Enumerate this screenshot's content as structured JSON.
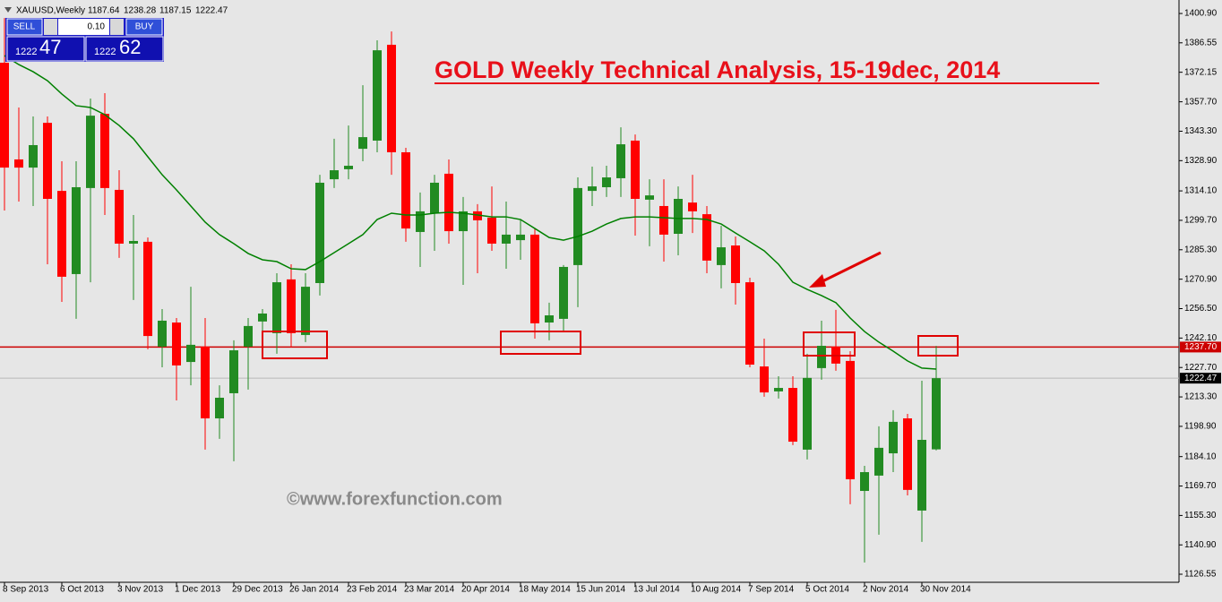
{
  "chart_data": {
    "type": "candlestick",
    "title": "GOLD Weekly Technical Analysis, 15-19dec, 2014",
    "watermark": "©www.forexfunction.com",
    "symbol": "XAUUSD,Weekly",
    "up_color": "#228b22",
    "down_color": "#ff0000",
    "categories": [
      "8 Sep 2013",
      null,
      null,
      null,
      "6 Oct 2013",
      null,
      null,
      null,
      "3 Nov 2013",
      null,
      null,
      null,
      "1 Dec 2013",
      null,
      null,
      null,
      "29 Dec 2013",
      null,
      null,
      null,
      "26 Jan 2014",
      null,
      null,
      null,
      "23 Feb 2014",
      null,
      null,
      null,
      "23 Mar 2014",
      null,
      null,
      null,
      "20 Apr 2014",
      null,
      null,
      null,
      "18 May 2014",
      null,
      null,
      null,
      "15 Jun 2014",
      null,
      null,
      null,
      "13 Jul 2014",
      null,
      null,
      null,
      "10 Aug 2014",
      null,
      null,
      null,
      "7 Sep 2014",
      null,
      null,
      null,
      "5 Oct 2014",
      null,
      null,
      null,
      "2 Nov 2014",
      null,
      null,
      null,
      "30 Nov 2014",
      null
    ],
    "open": [
      1376.8,
      1329.5,
      1325.5,
      1347.4,
      1314.1,
      1273.4,
      1315.5,
      1351.8,
      1314.6,
      1288.3,
      1289.2,
      1237.9,
      1249.7,
      1230.4,
      1237.9,
      1202.8,
      1215.1,
      1237.9,
      1250.2,
      1244.5,
      1270.8,
      1243.6,
      1269.0,
      1319.8,
      1324.7,
      1334.7,
      1338.7,
      1385.6,
      1333.0,
      1294.0,
      1303.2,
      1322.5,
      1294.4,
      1304.1,
      1301.0,
      1288.3,
      1290.0,
      1292.7,
      1249.7,
      1251.5,
      1277.8,
      1314.1,
      1315.9,
      1320.3,
      1338.7,
      1309.8,
      1306.7,
      1293.1,
      1308.4,
      1302.7,
      1277.8,
      1287.4,
      1269.4,
      1228.2,
      1216.0,
      1217.7,
      1187.5,
      1227.4,
      1237.9,
      1230.9,
      1167.3,
      1174.8,
      1185.7,
      1202.8,
      1157.7,
      1187.64
    ],
    "high": [
      1398.7,
      1354.9,
      1350.5,
      1350.5,
      1328.6,
      1328.6,
      1359.3,
      1361.9,
      1324.2,
      1302.3,
      1291.3,
      1256.3,
      1251.9,
      1267.2,
      1251.9,
      1219.0,
      1241.0,
      1251.9,
      1256.3,
      1273.8,
      1278.2,
      1273.8,
      1322.0,
      1339.6,
      1346.1,
      1365.8,
      1387.8,
      1392.1,
      1335.2,
      1313.3,
      1322.0,
      1329.5,
      1311.1,
      1307.6,
      1316.3,
      1308.9,
      1300.1,
      1295.7,
      1259.4,
      1277.8,
      1320.7,
      1326.0,
      1326.4,
      1345.2,
      1341.7,
      1319.8,
      1319.8,
      1316.3,
      1322.0,
      1306.7,
      1297.0,
      1291.8,
      1271.6,
      1241.8,
      1223.4,
      1223.4,
      1234.4,
      1250.6,
      1255.9,
      1235.7,
      1179.6,
      1198.9,
      1206.8,
      1205.0,
      1221.2,
      1238.28
    ],
    "low": [
      1304.5,
      1308.9,
      1306.7,
      1278.2,
      1259.8,
      1251.5,
      1269.4,
      1302.3,
      1281.3,
      1260.7,
      1236.6,
      1227.8,
      1211.6,
      1219.0,
      1187.5,
      1192.8,
      1181.8,
      1216.9,
      1245.3,
      1234.4,
      1237.5,
      1240.1,
      1262.9,
      1315.5,
      1319.8,
      1328.6,
      1333.0,
      1322.0,
      1289.2,
      1276.9,
      1284.8,
      1288.3,
      1268.1,
      1273.8,
      1284.8,
      1276.0,
      1280.4,
      1241.8,
      1241.0,
      1245.3,
      1257.2,
      1306.7,
      1311.1,
      1311.1,
      1292.2,
      1287.0,
      1279.5,
      1282.6,
      1293.5,
      1273.8,
      1266.4,
      1258.5,
      1227.8,
      1213.4,
      1212.5,
      1189.7,
      1182.7,
      1221.7,
      1226.1,
      1160.8,
      1132.3,
      1145.9,
      1176.5,
      1165.1,
      1142.4,
      1187.15
    ],
    "close": [
      1325.5,
      1325.5,
      1336.5,
      1310.2,
      1272.1,
      1315.9,
      1350.9,
      1315.5,
      1288.3,
      1289.6,
      1243.1,
      1250.6,
      1228.7,
      1238.8,
      1202.8,
      1212.9,
      1236.1,
      1248.0,
      1254.1,
      1269.4,
      1244.5,
      1267.2,
      1318.1,
      1324.2,
      1326.4,
      1340.4,
      1382.9,
      1333.0,
      1295.7,
      1304.1,
      1318.1,
      1294.4,
      1304.1,
      1299.7,
      1288.3,
      1292.7,
      1292.7,
      1249.3,
      1253.2,
      1276.9,
      1315.5,
      1316.3,
      1320.7,
      1336.9,
      1310.2,
      1311.9,
      1292.7,
      1310.2,
      1304.1,
      1280.0,
      1286.5,
      1269.0,
      1229.1,
      1215.5,
      1217.7,
      1191.4,
      1222.6,
      1238.3,
      1229.6,
      1173.0,
      1176.5,
      1188.4,
      1201.1,
      1167.8,
      1192.3,
      1222.47
    ],
    "ma": {
      "color": "#008000",
      "values": [
        1380.3,
        1375.9,
        1372.4,
        1368.0,
        1361.5,
        1355.8,
        1354.9,
        1351.4,
        1346.1,
        1339.6,
        1330.8,
        1322.0,
        1314.6,
        1306.7,
        1298.8,
        1292.7,
        1288.3,
        1283.5,
        1280.4,
        1279.5,
        1276.0,
        1275.6,
        1279.5,
        1283.9,
        1288.3,
        1292.7,
        1300.1,
        1303.2,
        1302.3,
        1302.3,
        1303.2,
        1303.6,
        1303.2,
        1302.3,
        1301.4,
        1301.4,
        1300.1,
        1295.7,
        1291.3,
        1290.0,
        1291.8,
        1294.4,
        1297.9,
        1300.6,
        1301.4,
        1301.4,
        1301.0,
        1300.6,
        1300.6,
        1300.1,
        1297.9,
        1293.5,
        1289.2,
        1284.8,
        1278.2,
        1269.4,
        1265.9,
        1262.9,
        1259.4,
        1251.9,
        1245.3,
        1240.1,
        1235.7,
        1230.9,
        1227.4,
        1226.9
      ]
    },
    "ylim": [
      1122.6,
      1407.5
    ],
    "yticks": [
      {
        "value": 1400.9,
        "label": "1400.90"
      },
      1386.55,
      1372.15,
      {
        "value": 1357.7,
        "label": "1357.70"
      },
      {
        "value": 1343.3,
        "label": "1343.30"
      },
      {
        "value": 1328.9,
        "label": "1328.90"
      },
      {
        "value": 1314.1,
        "label": "1314.10"
      },
      {
        "value": 1299.7,
        "label": "1299.70"
      },
      {
        "value": 1285.3,
        "label": "1285.30"
      },
      {
        "value": 1270.9,
        "label": "1270.90"
      },
      {
        "value": 1256.5,
        "label": "1256.50"
      },
      {
        "value": 1242.1,
        "label": "1242.10"
      },
      {
        "value": 1227.7,
        "label": "1227.70"
      },
      {
        "value": 1213.3,
        "label": "1213.30"
      },
      {
        "value": 1198.9,
        "label": "1198.90"
      },
      {
        "value": 1184.1,
        "label": "1184.10"
      },
      {
        "value": 1169.7,
        "label": "1169.70"
      },
      {
        "value": 1155.3,
        "label": "1155.30"
      },
      {
        "value": 1140.9,
        "label": "1140.90"
      },
      1126.55
    ],
    "hline": {
      "value": 1237.7,
      "label": "1237.70",
      "color": "#cc0000"
    },
    "trade_panel": {
      "sell": "SELL",
      "buy": "BUY",
      "lot": "0.10",
      "bid_main": "1222",
      "bid_pips": "47",
      "ask_main": "1222",
      "ask_pips": "62"
    }
  }
}
